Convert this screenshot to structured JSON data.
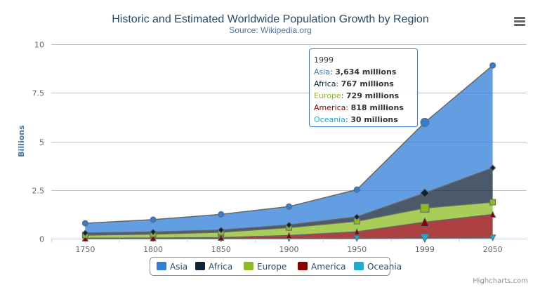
{
  "chart_data": {
    "type": "area",
    "stacking": "normal",
    "title": "Historic and Estimated Worldwide Population Growth by Region",
    "subtitle": "Source: Wikipedia.org",
    "xlabel": "",
    "ylabel": "Billions",
    "categories": [
      "1750",
      "1800",
      "1850",
      "1900",
      "1950",
      "1999",
      "2050"
    ],
    "yticks": [
      "0",
      "2.5",
      "5",
      "7.5",
      "10"
    ],
    "ylim": [
      0,
      10000
    ],
    "units": "millions",
    "grid": true,
    "legend_placement": "bottom",
    "series": [
      {
        "name": "Asia",
        "color": "#2f7ed8",
        "marker": "circle",
        "values": [
          502,
          635,
          809,
          947,
          1402,
          3634,
          5268
        ]
      },
      {
        "name": "Africa",
        "color": "#0d233a",
        "marker": "diamond",
        "values": [
          106,
          107,
          111,
          133,
          221,
          767,
          1766
        ]
      },
      {
        "name": "Europe",
        "color": "#8bbc21",
        "marker": "square",
        "values": [
          163,
          203,
          276,
          408,
          547,
          729,
          628
        ]
      },
      {
        "name": "America",
        "color": "#910000",
        "marker": "triangle",
        "values": [
          18,
          31,
          54,
          156,
          339,
          818,
          1201
        ]
      },
      {
        "name": "Oceania",
        "color": "#1aadce",
        "marker": "triangle-down",
        "values": [
          2,
          2,
          2,
          6,
          13,
          30,
          46
        ]
      }
    ],
    "tooltip": {
      "header": "1999",
      "rows": [
        {
          "name": "Asia",
          "value": "3,634 millions"
        },
        {
          "name": "Africa",
          "value": "767 millions"
        },
        {
          "name": "Europe",
          "value": "729 millions"
        },
        {
          "name": "America",
          "value": "818 millions"
        },
        {
          "name": "Oceania",
          "value": "30 millions"
        }
      ]
    }
  },
  "menu_icon": "hamburger-menu-icon",
  "credits": "Highcharts.com"
}
